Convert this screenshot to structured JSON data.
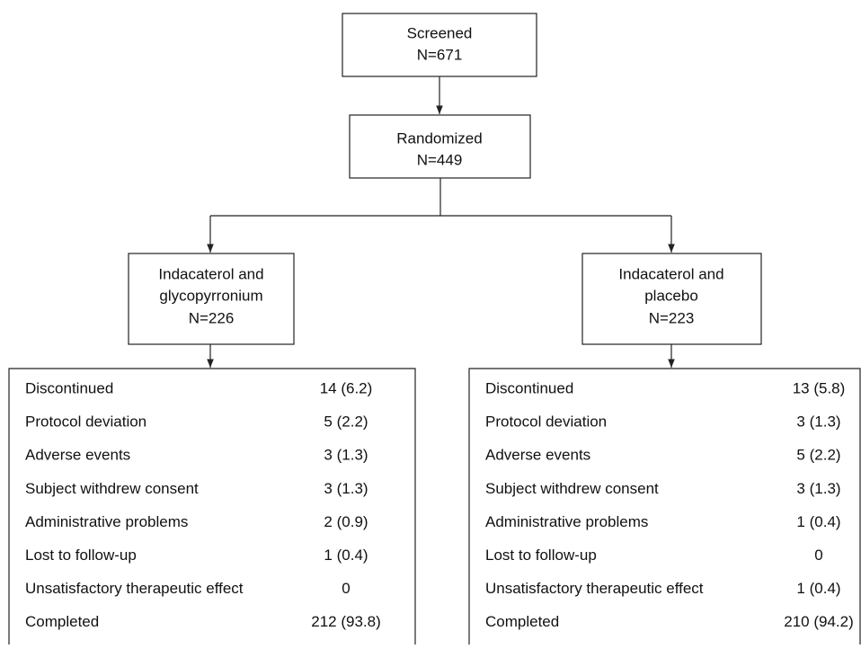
{
  "nodes": [
    {
      "lines": [
        "Screened",
        "N=671"
      ]
    },
    {
      "lines": [
        "Randomized",
        "N=449"
      ]
    },
    {
      "lines": [
        "Indacaterol and",
        "glycopyrronium",
        "N=226"
      ]
    },
    {
      "lines": [
        "Indacaterol and",
        "placebo",
        "N=223"
      ]
    }
  ],
  "tables": [
    {
      "rows": [
        [
          "Discontinued",
          "14 (6.2)"
        ],
        [
          "Protocol deviation",
          "5 (2.2)"
        ],
        [
          "Adverse events",
          "3 (1.3)"
        ],
        [
          "Subject withdrew consent",
          "3 (1.3)"
        ],
        [
          "Administrative problems",
          "2 (0.9)"
        ],
        [
          "Lost to follow-up",
          "1 (0.4)"
        ],
        [
          "Unsatisfactory therapeutic effect",
          "0"
        ],
        [
          "Completed",
          "212 (93.8)"
        ]
      ]
    },
    {
      "rows": [
        [
          "Discontinued",
          "13 (5.8)"
        ],
        [
          "Protocol deviation",
          "3 (1.3)"
        ],
        [
          "Adverse events",
          "5 (2.2)"
        ],
        [
          "Subject withdrew consent",
          "3 (1.3)"
        ],
        [
          "Administrative problems",
          "1 (0.4)"
        ],
        [
          "Lost to follow-up",
          "0"
        ],
        [
          "Unsatisfactory therapeutic effect",
          "1 (0.4)"
        ],
        [
          "Completed",
          "210 (94.2)"
        ]
      ]
    }
  ]
}
